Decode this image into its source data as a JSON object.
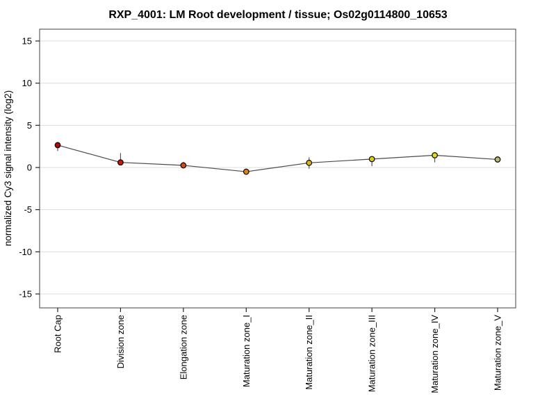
{
  "page": {
    "background": "#ffffff"
  },
  "chart_data": {
    "type": "line",
    "title": "RXP_4001: LM Root development / tissue; Os02g0114800_10653",
    "ylabel": "normalized Cy3 signal intensity (log2)",
    "xlabel": "",
    "categories": [
      "Root Cap",
      "Division zone",
      "Elongation zone",
      "Maturation zone_I",
      "Maturation zone_II",
      "Maturation zone_III",
      "Maturation zone_IV",
      "Maturation zone_V"
    ],
    "series": [
      {
        "name": "normalized Cy3 signal intensity (log2)",
        "values": [
          2.65,
          0.6,
          0.25,
          -0.5,
          0.55,
          1.0,
          1.45,
          0.95
        ],
        "error_low": [
          1.95,
          0.35,
          -0.1,
          -0.8,
          -0.15,
          0.15,
          0.6,
          0.75
        ],
        "error_high": [
          2.95,
          1.7,
          0.65,
          -0.15,
          1.2,
          1.2,
          1.7,
          1.1
        ],
        "point_colors": [
          "#c00000",
          "#d41400",
          "#dc4600",
          "#e67e00",
          "#e2b400",
          "#ddd000",
          "#e6de00",
          "#b9b965"
        ]
      }
    ],
    "ylim": [
      -16.65,
      16.4
    ],
    "yticks": [
      -15,
      -10,
      -5,
      0,
      5,
      10,
      15
    ],
    "grid": "horizontal",
    "legend": "none",
    "colors": {
      "line": "#4a4a4a",
      "error_bar": "#555555",
      "marker_outline": "#000000",
      "grid_line": "#dcdcdc",
      "frame": "#606060",
      "tick": "#222222"
    }
  }
}
